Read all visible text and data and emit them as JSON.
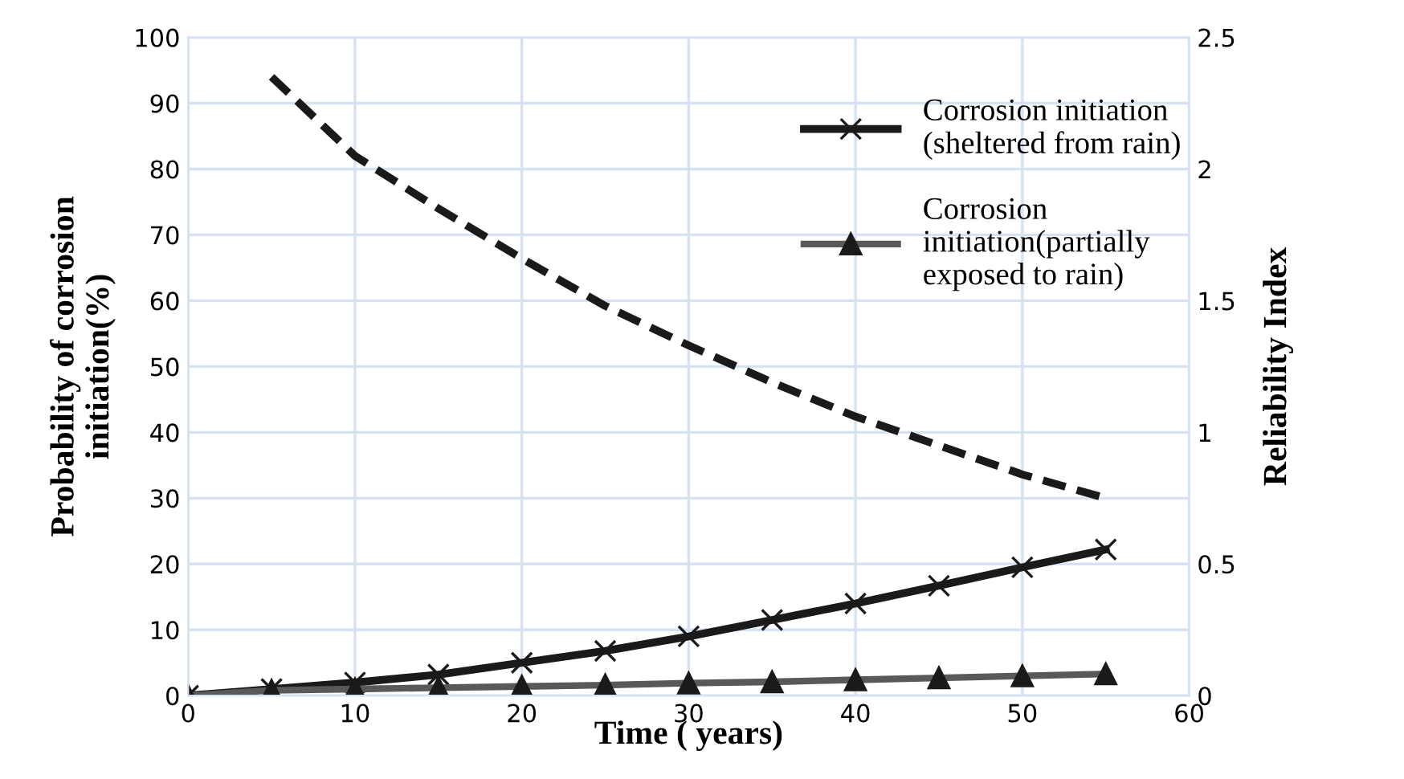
{
  "chart_data": {
    "type": "line",
    "xlabel": "Time ( years)",
    "ylabel": "Probability of corrosion\ninitiation(%)",
    "y2label": "Reliability Index",
    "xlim": [
      0,
      60
    ],
    "xticks": [
      0,
      10,
      20,
      30,
      40,
      50,
      60
    ],
    "ylim": [
      0,
      100
    ],
    "yticks": [
      0,
      10,
      20,
      30,
      40,
      50,
      60,
      70,
      80,
      90,
      100
    ],
    "y2lim": [
      0,
      2.5
    ],
    "y2ticks": [
      0,
      0.5,
      1,
      1.5,
      2,
      2.5
    ],
    "grid": true,
    "legend": "top right",
    "series": [
      {
        "name": "Corrosion initiation\n(sheltered from rain)",
        "color": "#1a1a1a",
        "marker": "cross",
        "x": [
          0,
          5,
          10,
          15,
          20,
          25,
          30,
          35,
          40,
          45,
          50,
          55
        ],
        "values": [
          0,
          1,
          2,
          3.2,
          5,
          6.8,
          9,
          11.5,
          14,
          16.7,
          19.5,
          22.2
        ]
      },
      {
        "name": "Corrosion\ninitiation(partially\nexposed to rain)",
        "color": "#595959",
        "marker": "triangle",
        "x": [
          0,
          5,
          10,
          15,
          20,
          25,
          30,
          35,
          40,
          45,
          50,
          55
        ],
        "values": [
          0,
          0.8,
          1,
          1.2,
          1.4,
          1.6,
          1.9,
          2.1,
          2.4,
          2.7,
          3.0,
          3.3
        ]
      },
      {
        "color": "#1a1a1a",
        "axis": "y2",
        "line_style": "dashed",
        "marker": "none",
        "x": [
          5,
          10,
          15,
          20,
          25,
          30,
          35,
          40,
          45,
          50,
          55
        ],
        "values": [
          2.35,
          2.05,
          1.85,
          1.66,
          1.48,
          1.33,
          1.19,
          1.06,
          0.95,
          0.84,
          0.75
        ]
      }
    ]
  }
}
